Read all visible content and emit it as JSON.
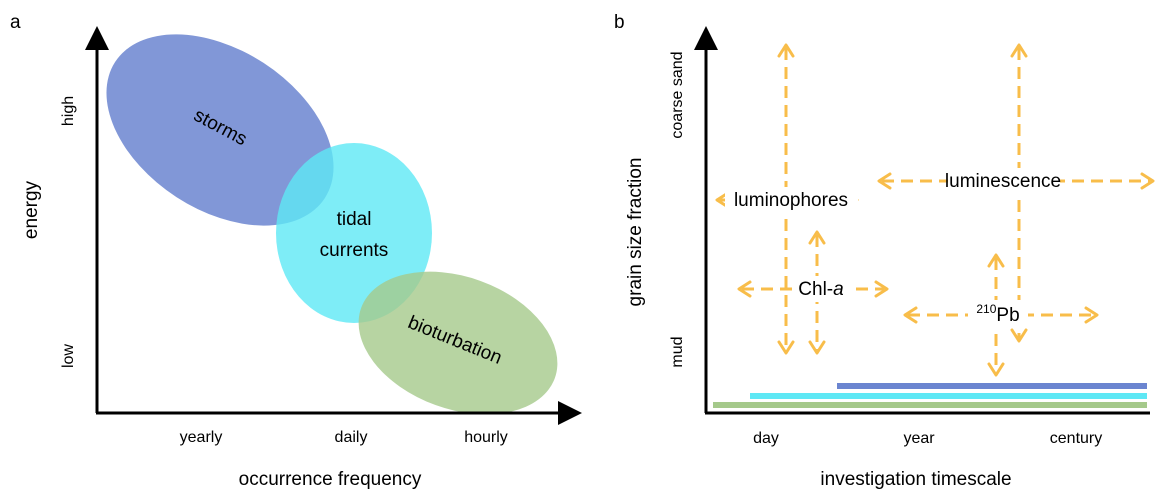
{
  "panel_a": {
    "letter": "a",
    "ylabel": "energy",
    "xlabel": "occurrence frequency",
    "yticks": {
      "high": "high",
      "low": "low"
    },
    "xticks": [
      "yearly",
      "daily",
      "hourly"
    ],
    "ellipses": [
      {
        "label": "storms",
        "color": "#6b85d0"
      },
      {
        "label_line1": "tidal",
        "label_line2": "currents",
        "color": "#5ee8f5"
      },
      {
        "label": "bioturbation",
        "color": "#a5c98b"
      }
    ]
  },
  "panel_b": {
    "letter": "b",
    "ylabel": "grain size fraction",
    "xlabel": "investigation timescale",
    "yticks": {
      "top": "coarse sand",
      "bottom": "mud"
    },
    "xticks": [
      "day",
      "year",
      "century"
    ],
    "arrow_color": "#f8bd4a",
    "methods": {
      "luminophores": "luminophores",
      "luminescence": "luminescence",
      "chl_prefix": "Chl-",
      "chl_italic": "a",
      "pb_sup": "210",
      "pb_base": "Pb"
    },
    "bars": [
      {
        "color": "#6b85d0"
      },
      {
        "color": "#5ee8f5"
      },
      {
        "color": "#a5c98b"
      }
    ]
  }
}
